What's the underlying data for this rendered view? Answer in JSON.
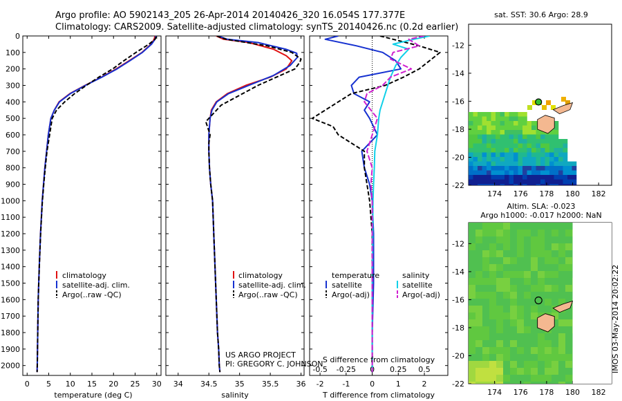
{
  "header": {
    "line1": "Argo profile: AO 5902143_205 26-Apr-2014 20140426_320 16.054S 177.377E",
    "line2": "Climatology: CARS2009. Satellite-adjusted climatology: synTS_20140426.nc (0.2d earlier)"
  },
  "credit": {
    "line1": "US ARGO PROJECT",
    "line2": "PI: GREGORY C. JOHNSON"
  },
  "side_stamp": "IMOS 03-May-2014 20:02:22",
  "colors": {
    "climatology": "#e01010",
    "satellite": "#1530d0",
    "argo": "#000000",
    "satellite_sal": "#10d0e8",
    "argo_sal": "#d020d0"
  },
  "depth_ticks": [
    0,
    100,
    200,
    300,
    400,
    500,
    600,
    700,
    800,
    900,
    1000,
    1100,
    1200,
    1300,
    1400,
    1500,
    1600,
    1700,
    1800,
    1900,
    2000
  ],
  "chart_data": [
    {
      "type": "line",
      "title": "",
      "xlabel": "temperature (deg C)",
      "ylabel": "",
      "xlim": [
        -1,
        31
      ],
      "ylim": [
        2060,
        0
      ],
      "xticks": [
        0,
        5,
        10,
        15,
        20,
        25,
        30
      ],
      "legend": [
        "climatology",
        "satellite-adj. clim.",
        "Argo(..raw -QC)"
      ],
      "series": [
        {
          "name": "climatology",
          "color_key": "climatology",
          "x": [
            29.6,
            29.4,
            28.7,
            26.6,
            23.6,
            20.6,
            17.2,
            13.4,
            9.9,
            7.4,
            6.3,
            5.5,
            4.9,
            4.5,
            4.1,
            3.8,
            3.5,
            3.3,
            3.1,
            2.95,
            2.8,
            2.68,
            2.56,
            2.45,
            2.35,
            2.3
          ],
          "y": [
            0,
            20,
            50,
            100,
            150,
            200,
            250,
            300,
            350,
            400,
            450,
            500,
            600,
            700,
            800,
            900,
            1000,
            1100,
            1200,
            1300,
            1400,
            1500,
            1600,
            1800,
            2000,
            2040
          ]
        },
        {
          "name": "satellite-adj. clim.",
          "color_key": "satellite",
          "x": [
            29.8,
            29.6,
            28.8,
            26.7,
            23.8,
            20.8,
            17.3,
            13.5,
            10.0,
            7.5,
            6.3,
            5.5,
            4.9,
            4.5,
            4.1,
            3.8,
            3.5,
            3.3,
            3.1,
            2.95,
            2.8,
            2.68,
            2.56,
            2.45,
            2.35,
            2.3
          ],
          "y": [
            0,
            20,
            50,
            100,
            150,
            200,
            250,
            300,
            350,
            400,
            450,
            500,
            600,
            700,
            800,
            900,
            1000,
            1100,
            1200,
            1300,
            1400,
            1500,
            1600,
            1800,
            2000,
            2040
          ]
        },
        {
          "name": "Argo(..raw -QC)",
          "color_key": "argo",
          "x": [
            29.9,
            29.6,
            28.2,
            25.2,
            22.4,
            19.8,
            16.6,
            13.7,
            11.0,
            8.7,
            6.8,
            5.8,
            5.2,
            4.6,
            4.2,
            3.85,
            3.55,
            3.32,
            3.12,
            2.96,
            2.82,
            2.69,
            2.57,
            2.46,
            2.36,
            2.31
          ],
          "y": [
            5,
            20,
            50,
            100,
            150,
            200,
            250,
            300,
            350,
            400,
            450,
            500,
            600,
            700,
            800,
            900,
            1000,
            1100,
            1200,
            1300,
            1400,
            1500,
            1600,
            1800,
            2000,
            2040
          ]
        }
      ]
    },
    {
      "type": "line",
      "xlabel": "salinity",
      "ylabel": "",
      "xlim": [
        33.8,
        36.05
      ],
      "ylim": [
        2060,
        0
      ],
      "xticks": [
        34,
        34.5,
        35,
        35.5,
        36
      ],
      "legend": [
        "climatology",
        "satellite-adj. clim.",
        "Argo(..raw -QC)"
      ],
      "series": [
        {
          "name": "climatology",
          "color_key": "climatology",
          "x": [
            34.62,
            34.74,
            35.15,
            35.55,
            35.76,
            35.85,
            35.76,
            35.5,
            35.1,
            34.8,
            34.62,
            34.54,
            34.52,
            34.5,
            34.5,
            34.51,
            34.53,
            34.56,
            34.58,
            34.6,
            34.62,
            34.64,
            34.66,
            34.67,
            34.68
          ],
          "y": [
            0,
            20,
            40,
            80,
            120,
            150,
            200,
            250,
            300,
            350,
            400,
            450,
            500,
            600,
            700,
            800,
            900,
            1000,
            1200,
            1400,
            1600,
            1800,
            1900,
            2000,
            2040
          ]
        },
        {
          "name": "satellite-adj. clim.",
          "color_key": "satellite",
          "x": [
            34.65,
            34.8,
            35.3,
            35.75,
            35.93,
            35.94,
            35.82,
            35.55,
            35.15,
            34.82,
            34.63,
            34.55,
            34.52,
            34.5,
            34.5,
            34.51,
            34.53,
            34.56,
            34.58,
            34.6,
            34.62,
            34.64,
            34.66,
            34.67,
            34.68
          ],
          "y": [
            0,
            20,
            40,
            80,
            105,
            130,
            180,
            240,
            300,
            350,
            400,
            450,
            500,
            600,
            700,
            800,
            900,
            1000,
            1200,
            1400,
            1600,
            1800,
            1900,
            2000,
            2040
          ]
        },
        {
          "name": "Argo(..raw -QC)",
          "color_key": "argo",
          "x": [
            34.63,
            34.78,
            35.45,
            35.85,
            36.0,
            35.98,
            35.9,
            35.6,
            35.3,
            35.0,
            34.7,
            34.55,
            34.45,
            34.52,
            34.5,
            34.5,
            34.51,
            34.53,
            34.56,
            34.58,
            34.6,
            34.62,
            34.64,
            34.66,
            34.67,
            34.68
          ],
          "y": [
            0,
            20,
            60,
            100,
            140,
            160,
            200,
            250,
            300,
            360,
            420,
            480,
            520,
            600,
            650,
            700,
            800,
            900,
            1000,
            1200,
            1400,
            1600,
            1800,
            1900,
            2000,
            2040
          ]
        }
      ]
    },
    {
      "type": "line",
      "xlabel_top": "S difference from climatology",
      "xlabel": "T difference from climatology",
      "xlim": [
        -2.4,
        2.9
      ],
      "ylim": [
        2060,
        0
      ],
      "xticks": [
        -2,
        -1,
        0,
        1,
        2
      ],
      "xticks_top": [
        "-0.5",
        "-0.25",
        "0",
        "0.25",
        "0.5"
      ],
      "legend_title_left": "temperature",
      "legend_title_right": "salinity",
      "legend_left": [
        "satellite",
        "Argo(-adj)"
      ],
      "legend_right": [
        "satellite",
        "Argo(-adj)"
      ],
      "series": [
        {
          "name": "temperature satellite",
          "color_key": "satellite",
          "x": [
            -1.3,
            -1.8,
            -0.6,
            0.4,
            0.9,
            1.1,
            -0.5,
            -0.8,
            -0.7,
            -0.1,
            -0.3,
            -0.1,
            0.2,
            -0.4,
            -0.3,
            -0.1,
            0.0,
            0.05,
            0.05,
            0.0,
            0.0
          ],
          "y": [
            0,
            20,
            60,
            100,
            150,
            200,
            250,
            300,
            350,
            400,
            450,
            500,
            600,
            700,
            800,
            900,
            1000,
            1200,
            1500,
            1800,
            2040
          ]
        },
        {
          "name": "temperature Argo(-adj)",
          "color_key": "argo",
          "x": [
            0.3,
            0.8,
            1.8,
            2.6,
            2.2,
            1.8,
            1.2,
            0.5,
            -0.8,
            -1.3,
            -2.3,
            -1.5,
            -1.3,
            -0.3,
            -0.3,
            -0.2,
            -0.1,
            0.0,
            0.0,
            0.0,
            0.0
          ],
          "y": [
            0,
            20,
            60,
            100,
            150,
            200,
            250,
            300,
            350,
            400,
            500,
            550,
            600,
            700,
            800,
            900,
            1000,
            1200,
            1500,
            1800,
            2040
          ]
        },
        {
          "name": "salinity satellite",
          "color_key": "satellite_sal",
          "x": [
            2.2,
            1.6,
            0.8,
            1.4,
            1.1,
            0.9,
            0.7,
            0.6,
            0.5,
            0.4,
            0.3,
            0.25,
            0.2,
            0.1,
            0.08,
            0.05,
            0.03,
            0.02,
            0.0,
            0.0
          ],
          "y": [
            0,
            20,
            50,
            80,
            130,
            180,
            250,
            300,
            350,
            400,
            450,
            500,
            600,
            700,
            800,
            900,
            1000,
            1200,
            1500,
            2040
          ]
        },
        {
          "name": "salinity Argo(-adj)",
          "color_key": "argo_sal",
          "x": [
            2.0,
            1.4,
            1.8,
            0.8,
            0.7,
            1.5,
            0.7,
            0.4,
            -0.2,
            -0.3,
            0.2,
            0.0,
            -0.2,
            0.0,
            -0.05,
            0.0,
            0.0,
            0.0
          ],
          "y": [
            0,
            20,
            60,
            100,
            140,
            200,
            250,
            300,
            350,
            400,
            500,
            600,
            700,
            800,
            900,
            1000,
            1500,
            2040
          ]
        }
      ]
    },
    {
      "type": "heatmap",
      "title": "sat. SST: 30.6  Argo: 28.9",
      "xlim": [
        172,
        183
      ],
      "ylim": [
        -22,
        -10.5
      ],
      "xticks": [
        174,
        176,
        178,
        180,
        182
      ],
      "yticks": [
        -12,
        -14,
        -16,
        -18,
        -20,
        -22
      ],
      "argo_position": {
        "lon": 177.377,
        "lat": -16.054
      }
    },
    {
      "type": "heatmap",
      "title_line1": "Altim. SLA: -0.023",
      "title_line2": "Argo h1000: -0.017 h2000: NaN",
      "xlim": [
        172,
        183
      ],
      "ylim": [
        -22,
        -10.5
      ],
      "xticks": [
        174,
        176,
        178,
        180,
        182
      ],
      "yticks": [
        -12,
        -14,
        -16,
        -18,
        -20,
        -22
      ],
      "argo_position": {
        "lon": 177.377,
        "lat": -16.054
      }
    }
  ]
}
